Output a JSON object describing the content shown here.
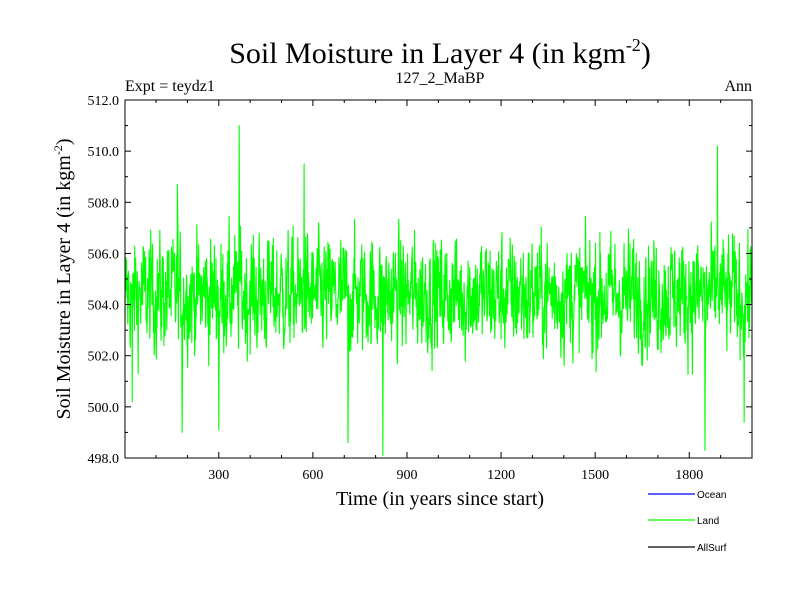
{
  "chart_data": {
    "type": "line",
    "title": "Soil Moisture in Layer 4 (in kgm",
    "title_sup": "-2",
    "title_close": ")",
    "left_label": "Expt = teydz1",
    "center_label": "127_2_MaBP",
    "right_label": "Ann",
    "xlabel": "Time (in years since start)",
    "ylabel": "Soil Moisture in Layer 4 (in kgm",
    "ylabel_sup": "-2",
    "ylabel_close": ")",
    "xlim": [
      1,
      2000
    ],
    "ylim": [
      498.0,
      512.0
    ],
    "x_ticks": [
      300,
      600,
      900,
      1200,
      1500,
      1800
    ],
    "x_tick_labels": [
      "300",
      "600",
      "900",
      "1200",
      "1500",
      "1800"
    ],
    "y_ticks": [
      498,
      500,
      502,
      504,
      506,
      508,
      510,
      512
    ],
    "y_tick_labels": [
      "498.0",
      "500.0",
      "502.0",
      "504.0",
      "506.0",
      "508.0",
      "510.0",
      "512.0"
    ],
    "legend": [
      {
        "name": "Ocean",
        "color": "#0000ff"
      },
      {
        "name": "Land",
        "color": "#00ff00"
      },
      {
        "name": "AllSurf",
        "color": "#000000"
      }
    ],
    "series": [
      {
        "name": "Land",
        "color": "#00ff00",
        "mean": 504.4,
        "n_years": 2000,
        "notable_points": [
          {
            "x": 1,
            "y": 503.5
          },
          {
            "x": 24,
            "y": 500.2
          },
          {
            "x": 168,
            "y": 508.7
          },
          {
            "x": 183,
            "y": 499.0
          },
          {
            "x": 300,
            "y": 499.1
          },
          {
            "x": 365,
            "y": 511.0
          },
          {
            "x": 572,
            "y": 509.5
          },
          {
            "x": 712,
            "y": 498.6
          },
          {
            "x": 823,
            "y": 498.1
          },
          {
            "x": 1850,
            "y": 498.3
          },
          {
            "x": 1890,
            "y": 510.2
          },
          {
            "x": 1975,
            "y": 499.4
          },
          {
            "x": 2000,
            "y": 504.5
          }
        ]
      }
    ]
  }
}
